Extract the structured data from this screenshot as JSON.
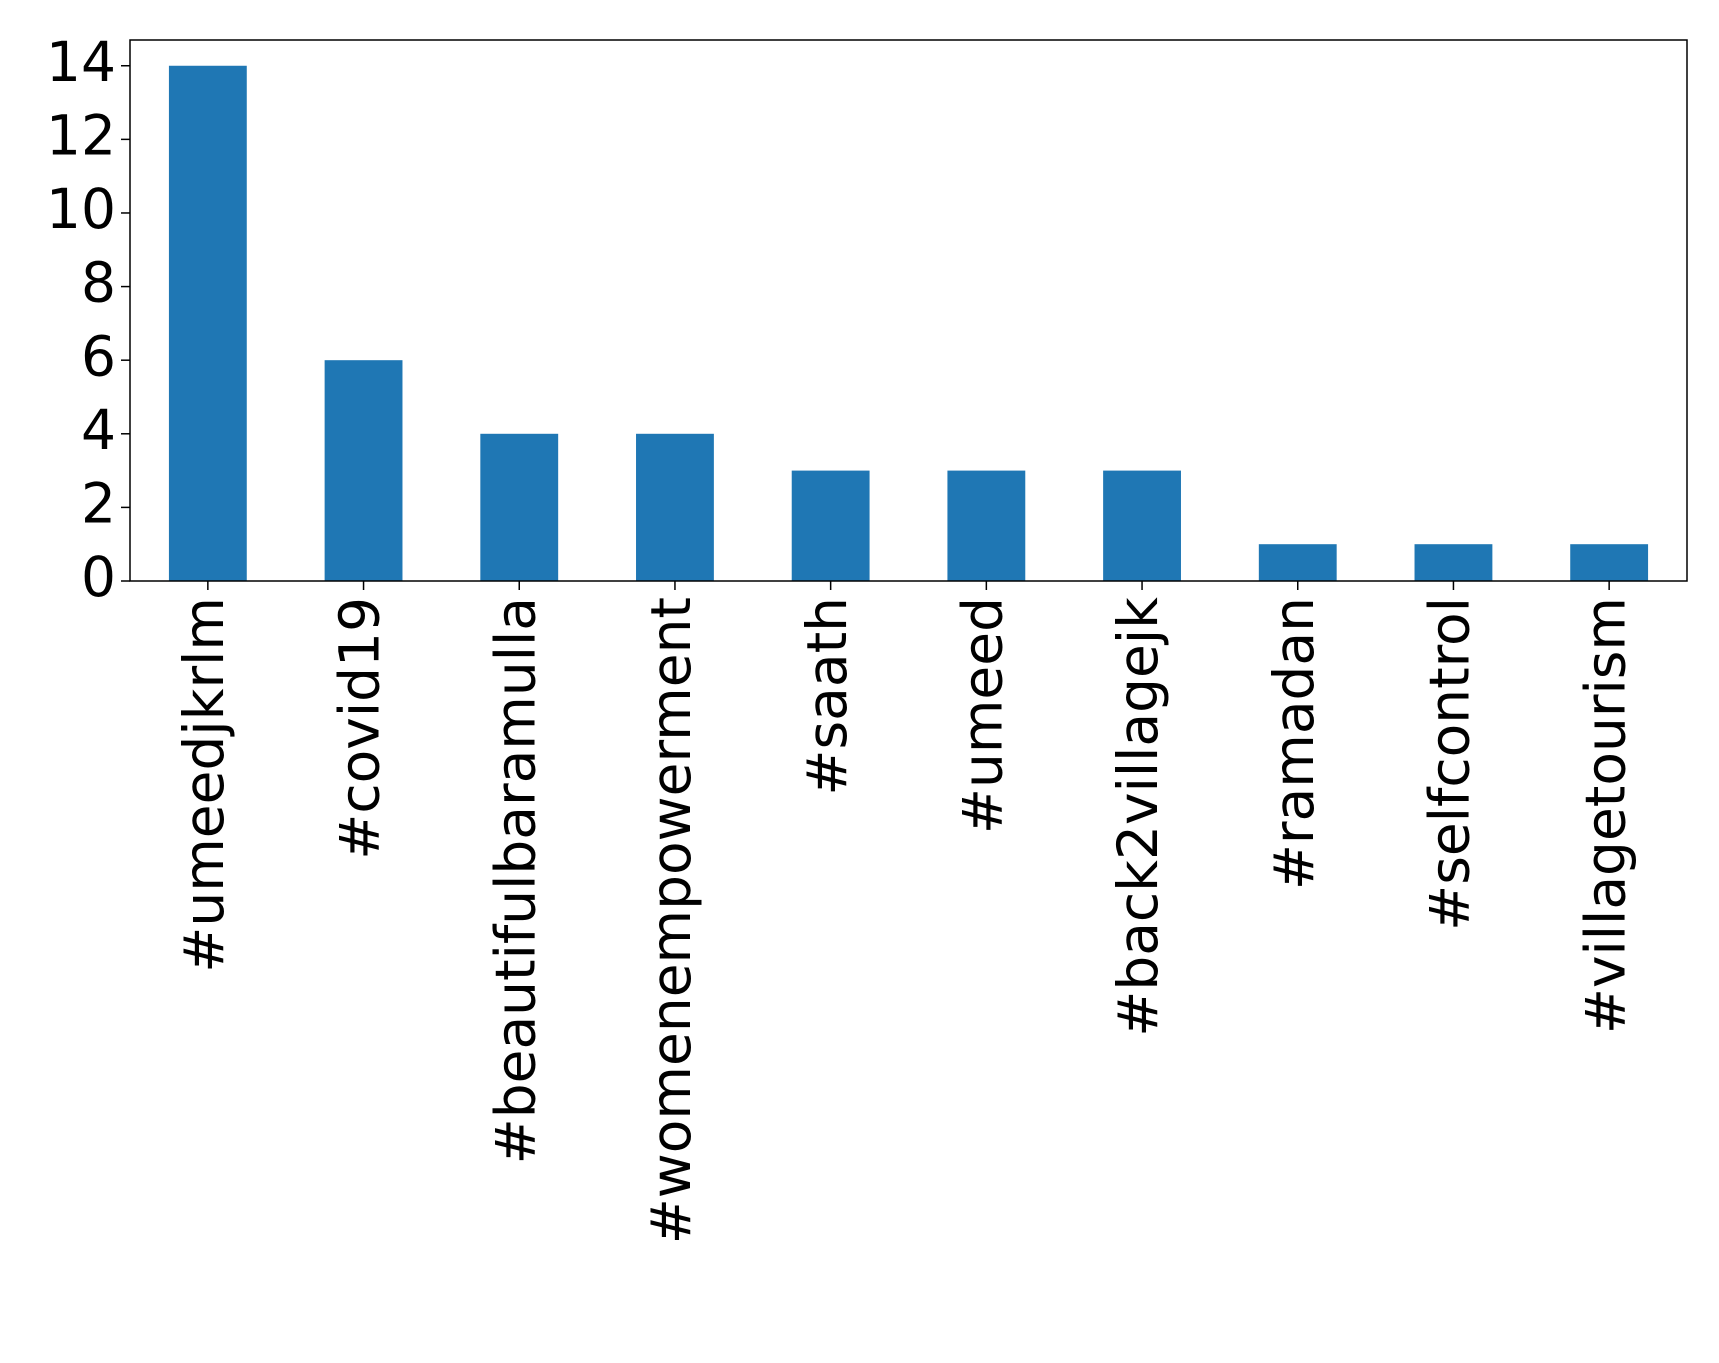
{
  "chart_data": {
    "type": "bar",
    "categories": [
      "#umeedjkrlm",
      "#covid19",
      "#beautifulbaramulla",
      "#womenempowerment",
      "#saath",
      "#umeed",
      "#back2villagejk",
      "#ramadan",
      "#selfcontrol",
      "#villagetourism"
    ],
    "values": [
      14,
      6,
      4,
      4,
      3,
      3,
      3,
      1,
      1,
      1
    ],
    "color": "#1f77b4",
    "ylim": [
      0,
      14.7
    ],
    "yticks": [
      0,
      2,
      4,
      6,
      8,
      10,
      12,
      14
    ],
    "grid": false
  }
}
